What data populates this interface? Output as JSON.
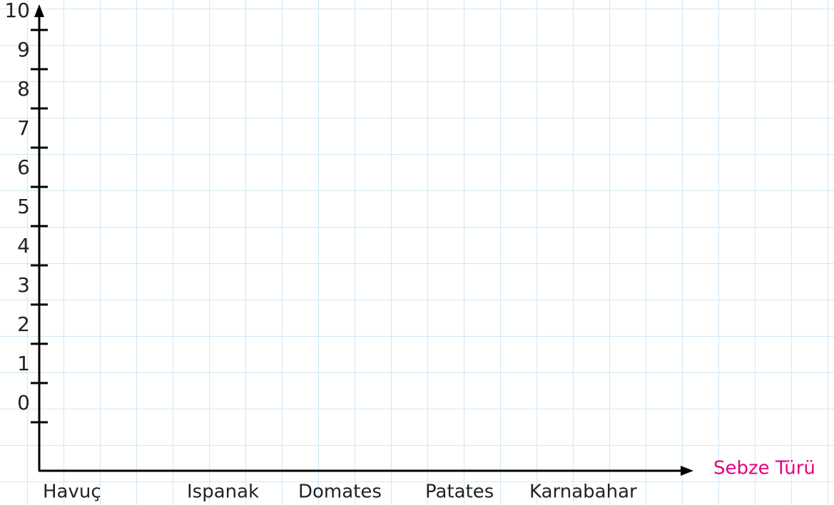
{
  "chart_data": {
    "type": "bar",
    "x_label": "Sebze Türü",
    "categories": [
      "Havuç",
      "Ispanak",
      "Domates",
      "Patates",
      "Karnabahar"
    ],
    "ylim": [
      0,
      10
    ],
    "yticks": [
      0,
      1,
      2,
      3,
      4,
      5,
      6,
      7,
      8,
      9,
      10
    ],
    "x_label_color": "#e6007e",
    "grid": true
  }
}
